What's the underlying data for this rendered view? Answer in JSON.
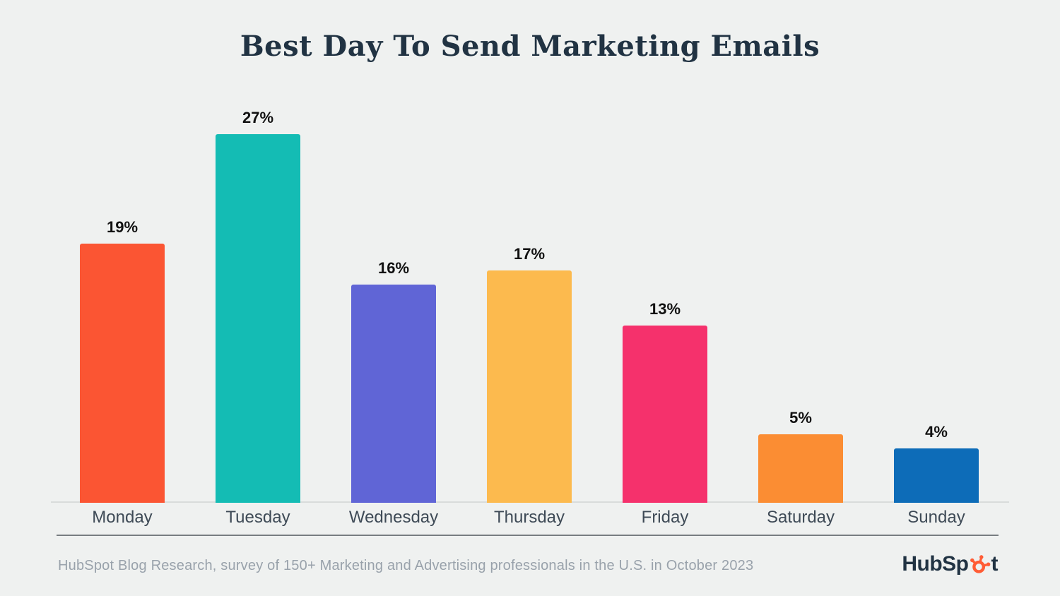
{
  "title": "Best Day To Send Marketing Emails",
  "chart_data": {
    "type": "bar",
    "title": "Best Day To Send Marketing Emails",
    "categories": [
      "Monday",
      "Tuesday",
      "Wednesday",
      "Thursday",
      "Friday",
      "Saturday",
      "Sunday"
    ],
    "values": [
      19,
      27,
      16,
      17,
      13,
      5,
      4
    ],
    "value_labels": [
      "19%",
      "27%",
      "16%",
      "17%",
      "13%",
      "5%",
      "4%"
    ],
    "bar_colors": [
      "#FB5533",
      "#14BCB4",
      "#6065D6",
      "#FCBA4E",
      "#F5316C",
      "#FB8D33",
      "#0D6CB8"
    ],
    "xlabel": "",
    "ylabel": "",
    "ylim": [
      0,
      30
    ],
    "grid": false,
    "legend": false,
    "data_label_position": "above-bar"
  },
  "footer": {
    "source_text": "HubSpot Blog Research, survey of 150+ Marketing and Advertising professionals in the U.S. in October 2023",
    "logo_prefix": "HubSp",
    "logo_suffix": "t",
    "logo_name": "HubSpot"
  },
  "colors": {
    "background": "#EFF1F0",
    "title": "#213343",
    "data_label": "#111111",
    "axis_label": "#3E4A56",
    "baseline": "#D9DCDB",
    "separator": "#63686D",
    "footer_text": "#99A2AB",
    "logo_dark": "#213343",
    "logo_orange": "#FF5C35"
  }
}
